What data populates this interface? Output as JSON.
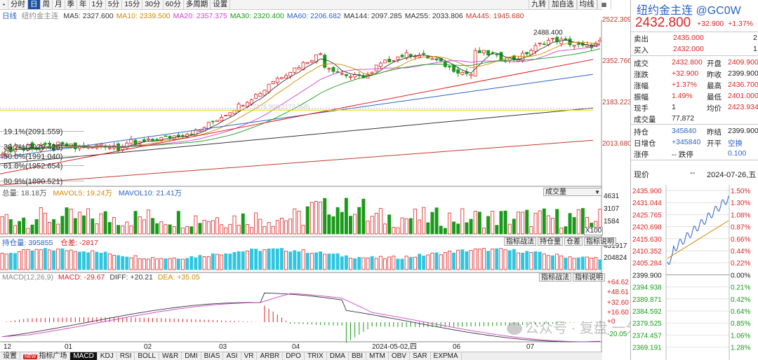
{
  "toolbar": {
    "periods": [
      "分时",
      "日",
      "周",
      "月",
      "季",
      "年",
      "1分",
      "5分",
      "15分",
      "30分",
      "60分",
      "多周期",
      "设置"
    ],
    "active_period": "日",
    "right_buttons": [
      "九转",
      "加自选",
      "均线"
    ],
    "corner_icon": "grid-icon"
  },
  "main_chart": {
    "period_label": "日线",
    "instrument": "纽约金主连",
    "ma_items": [
      {
        "label": "MA5: 2327.600",
        "color": "#333333"
      },
      {
        "label": "MA10: 2339.500",
        "color": "#d08a00"
      },
      {
        "label": "MA20: 2357.375",
        "color": "#d040d0"
      },
      {
        "label": "MA30: 2320.400",
        "color": "#1a9a1a"
      },
      {
        "label": "MA60: 2206.682",
        "color": "#2a62c5"
      },
      {
        "label": "MA144: 2097.285",
        "color": "#333333"
      },
      {
        "label": "MA255: 2033.806",
        "color": "#333333"
      },
      {
        "label": "MA445: 1945.680",
        "color": "#c0392b"
      }
    ],
    "y_axis": [
      "2522.309",
      "2352.766",
      "2183.223",
      "2013.680"
    ],
    "y_range": [
      1870,
      2540
    ],
    "high_label": "2488.400",
    "fib_levels": [
      {
        "label": "19.1%(2091.559)",
        "value": 2091.559
      },
      {
        "label": "38.2%(2029.426)",
        "value": 2029.426
      },
      {
        "label": "50.0%(1991.040)",
        "value": 1991.04
      },
      {
        "label": "61.8%(1952.654)",
        "value": 1952.654
      },
      {
        "label": "80.9%(1890.521)",
        "value": 1890.521
      }
    ],
    "mid_annotation": "2176.900(2173.668)"
  },
  "volume_panel": {
    "label": "总量: 18.18万",
    "mavol5": "MAVOL5: 19.24万",
    "mavol10": "MAVOL10: 21.41万",
    "selector": "成交量",
    "y_axis": [
      "4631",
      "3107",
      "1584"
    ],
    "unit": "X100"
  },
  "oi_panel": {
    "label": "持仓量: 395855",
    "diff": "仓差: -2817",
    "buttons": [
      "指标战法",
      "持仓量",
      "仓差",
      "指标说明"
    ],
    "y_axis": [
      "431917",
      "204824"
    ]
  },
  "macd_panel": {
    "label": "MACD(12,26,9)",
    "macd": "MACD: -29.67",
    "dif": "DIFF: +20.21",
    "dea": "DEA: +35.05",
    "buttons": [
      "指标战法",
      "指标说明"
    ],
    "y_axis": [
      "+64.62",
      "+48.61",
      "+32.60",
      "+16.60",
      "+0",
      "-20.05"
    ]
  },
  "x_axis": {
    "labels": [
      "12",
      "01",
      "02",
      "03",
      "04",
      "2024-05-02,四",
      "06",
      "07"
    ],
    "cursor_date": "2024-05-02,四"
  },
  "bottom_tabs": {
    "items": [
      "设置",
      "NEW",
      "指标广场",
      "MACD",
      "KDJ",
      "RSI",
      "BOLL",
      "W&R",
      "DMI",
      "BIAS",
      "ASI",
      "VR",
      "ARBR",
      "DPO",
      "TRIX",
      "DMA",
      "BBI",
      "MTM",
      "OBV",
      "SAR",
      "EXPMA"
    ],
    "active": "MACD"
  },
  "watermark": "公众号 · 复盘 一分钟",
  "quote": {
    "title": "纽约金主连 @GC0W",
    "price": "2432.800",
    "change": "+32.900",
    "change_pct": "+1.37%",
    "sell": {
      "label": "卖出",
      "value": "2435.000",
      "vol": "2"
    },
    "buy": {
      "label": "买入",
      "value": "2432.000",
      "vol": "1"
    },
    "rows": [
      {
        "l1": "成交",
        "v1": "2432.800",
        "c1": "red",
        "l2": "开盘",
        "v2": "2409.900",
        "c2": "red"
      },
      {
        "l1": "涨跌",
        "v1": "+32.900",
        "c1": "red",
        "l2": "昨收",
        "v2": "2399.900",
        "c2": "black"
      },
      {
        "l1": "涨幅",
        "v1": "+1.37%",
        "c1": "red",
        "l2": "最高",
        "v2": "2436.700",
        "c2": "red"
      },
      {
        "l1": "振幅",
        "v1": "1.49%",
        "c1": "red",
        "l2": "最低",
        "v2": "2401.000",
        "c2": "red"
      },
      {
        "l1": "现手",
        "v1": "1",
        "c1": "black",
        "l2": "均价",
        "v2": "2423.934",
        "c2": "red"
      },
      {
        "l1": "成交量",
        "v1": "77,872",
        "c1": "black",
        "l2": "",
        "v2": "",
        "c2": "black"
      }
    ],
    "rows2": [
      {
        "l1": "持仓",
        "v1": "345840",
        "c1": "blue",
        "l2": "昨结",
        "v2": "2399.900",
        "c2": "black"
      },
      {
        "l1": "日增仓",
        "v1": "+345840",
        "c1": "blue",
        "l2": "开平",
        "v2": "空换",
        "c2": "blue"
      },
      {
        "l1": "涨停",
        "v1": "-- 跌停",
        "c1": "black",
        "l2": "",
        "v2": "0.100",
        "c2": "blue"
      }
    ],
    "timeshare": {
      "label": "现价",
      "dash": "--",
      "date": "2024-07-26,五"
    },
    "left_axis": [
      "2435.900",
      "2431.044",
      "2425.765",
      "2420.698",
      "2415.630",
      "2410.352",
      "2405.284",
      "2399.900",
      "2394.938",
      "2389.871",
      "2384.592",
      "2379.525",
      "2374.457",
      "2369.191"
    ],
    "right_axis": [
      "1.50%",
      "1.30%",
      "1.08%",
      "0.87%",
      "0.66%",
      "0.44%",
      "0.22%",
      "0.00%",
      "0.21%",
      "0.42%",
      "0.64%",
      "0.85%",
      "1.06%",
      "1.28%"
    ]
  }
}
